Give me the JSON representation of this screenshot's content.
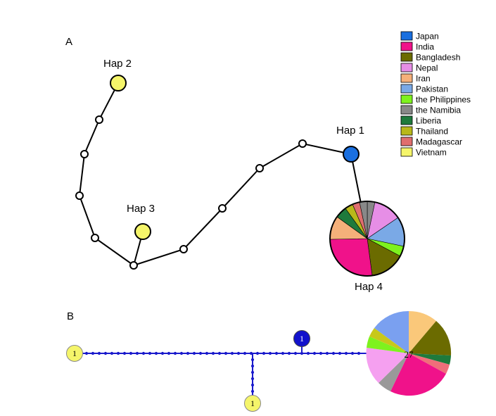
{
  "panel_a": {
    "label": "A",
    "haplotypes": [
      {
        "id": "hap2",
        "label": "Hap 2"
      },
      {
        "id": "hap3",
        "label": "Hap 3"
      },
      {
        "id": "hap1",
        "label": "Hap 1"
      },
      {
        "id": "hap4",
        "label": "Hap 4"
      }
    ]
  },
  "panel_b": {
    "label": "B",
    "node_counts": {
      "left": "1",
      "bottom": "1",
      "blue": "1",
      "pie": "27"
    }
  },
  "legend": [
    {
      "name": "Japan",
      "color": "#1a6fdf"
    },
    {
      "name": "India",
      "color": "#f0128a"
    },
    {
      "name": "Bangladesh",
      "color": "#6b6b00"
    },
    {
      "name": "Nepal",
      "color": "#e68ee6"
    },
    {
      "name": "Iran",
      "color": "#f5b07a"
    },
    {
      "name": "Pakistan",
      "color": "#7aa9e6"
    },
    {
      "name": "the Philippines",
      "color": "#7ef21e"
    },
    {
      "name": "the Namibia",
      "color": "#888888"
    },
    {
      "name": "Liberia",
      "color": "#1e7a3c"
    },
    {
      "name": "Thailand",
      "color": "#b8b81a"
    },
    {
      "name": "Madagascar",
      "color": "#e06e6e"
    },
    {
      "name": "Vietnam",
      "color": "#f5f56a"
    }
  ],
  "colors": {
    "hap1_fill": "#1a6fdf",
    "vietnam_fill": "#f5f56a",
    "network_b_line": "#1a1acc",
    "network_b_blue_node": "#1212cc",
    "pie_b": {
      "iran": "#fac87a",
      "bangladesh": "#6b6b00",
      "liberia": "#1e7a3c",
      "madagascar": "#f06e7a",
      "india": "#f0128a",
      "namibia": "#999999",
      "nepal": "#f5a0f0",
      "philippines": "#7ef21e",
      "thailand": "#c8c81a",
      "pakistan": "#7aa0f0"
    }
  }
}
